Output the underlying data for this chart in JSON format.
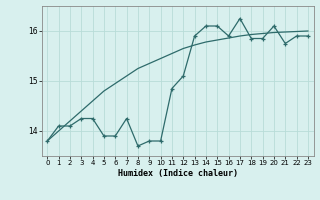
{
  "x": [
    0,
    1,
    2,
    3,
    4,
    5,
    6,
    7,
    8,
    9,
    10,
    11,
    12,
    13,
    14,
    15,
    16,
    17,
    18,
    19,
    20,
    21,
    22,
    23
  ],
  "y_main": [
    13.8,
    14.1,
    14.1,
    14.25,
    14.25,
    13.9,
    13.9,
    14.25,
    13.7,
    13.8,
    13.8,
    14.85,
    15.1,
    15.9,
    16.1,
    16.1,
    15.9,
    16.25,
    15.85,
    15.85,
    16.1,
    15.75,
    15.9,
    15.9
  ],
  "y_trend": [
    13.8,
    14.0,
    14.2,
    14.4,
    14.6,
    14.8,
    14.95,
    15.1,
    15.25,
    15.35,
    15.45,
    15.55,
    15.65,
    15.72,
    15.78,
    15.82,
    15.86,
    15.9,
    15.93,
    15.95,
    15.97,
    15.98,
    15.99,
    16.0
  ],
  "line_color": "#2e6b6b",
  "bg_color": "#d8f0ee",
  "grid_color": "#b8dcd8",
  "xlabel": "Humidex (Indice chaleur)",
  "ylim": [
    13.5,
    16.5
  ],
  "xlim": [
    -0.5,
    23.5
  ],
  "yticks": [
    14,
    15,
    16
  ],
  "xticks": [
    0,
    1,
    2,
    3,
    4,
    5,
    6,
    7,
    8,
    9,
    10,
    11,
    12,
    13,
    14,
    15,
    16,
    17,
    18,
    19,
    20,
    21,
    22,
    23
  ]
}
